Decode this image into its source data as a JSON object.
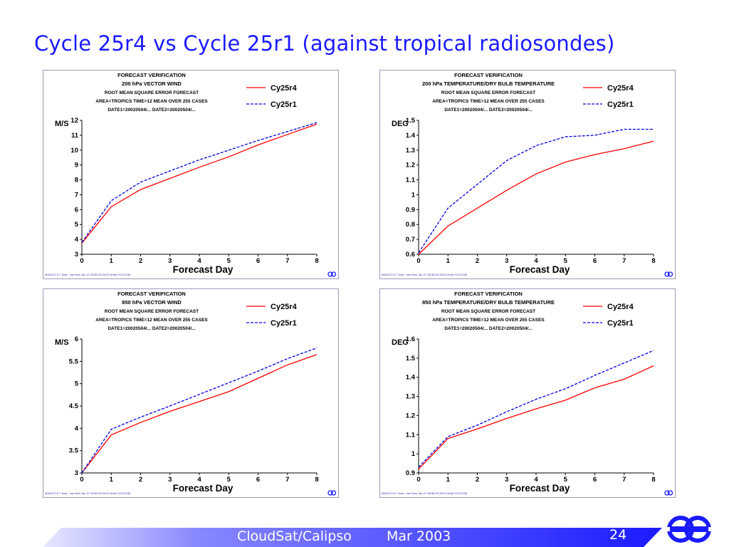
{
  "slide": {
    "title": "Cycle 25r4 vs Cycle 25r1 (against tropical radiosondes)",
    "footer_left": "CloudSat/Calipso",
    "footer_date": "Mar 2003",
    "page_number": "24",
    "bar_color": "#1a1aff",
    "logo_color": "#1a1aff"
  },
  "chart_data": [
    {
      "type": "line",
      "header": [
        "FORECAST VERIFICATION",
        "200 hPa VECTOR WIND",
        "ROOT MEAN SQUARE ERROR          FORECAST",
        "AREA=TROPICS    TIME=12   MEAN OVER 255 CASES",
        "DATE1=20020504/... DATE2=20020504/..."
      ],
      "ylabel": "M/S",
      "xlabel": "Forecast Day",
      "x": [
        0,
        1,
        2,
        3,
        4,
        5,
        6,
        7,
        8
      ],
      "ylim": [
        3,
        12
      ],
      "yticks": [
        "3",
        "4",
        "5",
        "6",
        "7",
        "8",
        "9",
        "10",
        "11",
        "12"
      ],
      "xticks": [
        "0",
        "1",
        "2",
        "3",
        "4",
        "5",
        "6",
        "7",
        "8"
      ],
      "series": [
        {
          "name": "Cy25r4",
          "color": "#ff0000",
          "dash": "solid",
          "values": [
            3.75,
            6.2,
            7.35,
            8.1,
            8.85,
            9.55,
            10.35,
            11.05,
            11.75
          ]
        },
        {
          "name": "Cy25r1",
          "color": "#0000dd",
          "dash": "dashed",
          "values": [
            3.8,
            6.6,
            7.85,
            8.6,
            9.35,
            10.0,
            10.65,
            11.25,
            11.85
          ]
        }
      ],
      "footnote": "MAGICS 6.7 bola - nse Mon Jan 27 08:53:00 2003 Verify SCOCOM",
      "legend": "top-right",
      "grid": false
    },
    {
      "type": "line",
      "header": [
        "FORECAST VERIFICATION",
        "200 hPa TEMPERATURE/DRY BULB TEMPERATURE",
        "ROOT MEAN SQUARE ERROR          FORECAST",
        "AREA=TROPICS    TIME=12   MEAN OVER 255 CASES",
        "DATE1=20020504/... DATE2=20020504/..."
      ],
      "ylabel": "DEG",
      "xlabel": "Forecast Day",
      "x": [
        0,
        1,
        2,
        3,
        4,
        5,
        6,
        7,
        8
      ],
      "ylim": [
        0.6,
        1.5
      ],
      "yticks": [
        "0.6",
        "0.7",
        "0.8",
        "0.9",
        "1",
        "1.1",
        "1.2",
        "1.3",
        "1.4",
        "1.5"
      ],
      "xticks": [
        "0",
        "1",
        "2",
        "3",
        "4",
        "5",
        "6",
        "7",
        "8"
      ],
      "series": [
        {
          "name": "Cy25r4",
          "color": "#ff0000",
          "dash": "solid",
          "values": [
            0.6,
            0.79,
            0.91,
            1.03,
            1.14,
            1.22,
            1.27,
            1.31,
            1.36
          ]
        },
        {
          "name": "Cy25r1",
          "color": "#0000dd",
          "dash": "dashed",
          "values": [
            0.61,
            0.91,
            1.07,
            1.23,
            1.33,
            1.39,
            1.4,
            1.44,
            1.44
          ]
        }
      ],
      "footnote": "MAGICS 6.7 bola - nse Mon Jan 27 08:55:06 2003 Verify SCOCOM",
      "legend": "top-right",
      "grid": false
    },
    {
      "type": "line",
      "header": [
        "FORECAST VERIFICATION",
        "850 hPa VECTOR WIND",
        "ROOT MEAN SQUARE ERROR          FORECAST",
        "AREA=TROPICS    TIME=12   MEAN OVER 255 CASES",
        "DATE1=20020504/... DATE2=20020504/..."
      ],
      "ylabel": "M/S",
      "xlabel": "Forecast Day",
      "x": [
        0,
        1,
        2,
        3,
        4,
        5,
        6,
        7,
        8
      ],
      "ylim": [
        3,
        6
      ],
      "yticks": [
        "3",
        "3.5",
        "4",
        "4.5",
        "5",
        "5.5",
        "6"
      ],
      "xticks": [
        "0",
        "1",
        "2",
        "3",
        "4",
        "5",
        "6",
        "7",
        "8"
      ],
      "series": [
        {
          "name": "Cy25r4",
          "color": "#ff0000",
          "dash": "solid",
          "values": [
            3.0,
            3.85,
            4.13,
            4.38,
            4.6,
            4.82,
            5.12,
            5.42,
            5.65
          ]
        },
        {
          "name": "Cy25r1",
          "color": "#0000dd",
          "dash": "dashed",
          "values": [
            3.0,
            3.98,
            4.25,
            4.5,
            4.76,
            5.02,
            5.28,
            5.56,
            5.8
          ]
        }
      ],
      "footnote": "MAGICS 6.7 bola - nse Mon Jan 27 08:53:00 2003 Verify SCOCOM",
      "legend": "top-right",
      "grid": false
    },
    {
      "type": "line",
      "header": [
        "FORECAST VERIFICATION",
        "850 hPa TEMPERATURE/DRY BULB TEMPERATURE",
        "ROOT MEAN SQUARE ERROR          FORECAST",
        "AREA=TROPICS    TIME=12   MEAN OVER 255 CASES",
        "DATE1=20020504/... DATE2=20020504/..."
      ],
      "ylabel": "DEG",
      "xlabel": "Forecast Day",
      "x": [
        0,
        1,
        2,
        3,
        4,
        5,
        6,
        7,
        8
      ],
      "ylim": [
        0.9,
        1.6
      ],
      "yticks": [
        "0.9",
        "1",
        "1.1",
        "1.2",
        "1.3",
        "1.4",
        "1.5",
        "1.6"
      ],
      "xticks": [
        "0",
        "1",
        "2",
        "3",
        "4",
        "5",
        "6",
        "7",
        "8"
      ],
      "series": [
        {
          "name": "Cy25r4",
          "color": "#ff0000",
          "dash": "solid",
          "values": [
            0.92,
            1.08,
            1.13,
            1.185,
            1.235,
            1.28,
            1.345,
            1.39,
            1.46
          ]
        },
        {
          "name": "Cy25r1",
          "color": "#0000dd",
          "dash": "dashed",
          "values": [
            0.93,
            1.09,
            1.15,
            1.22,
            1.285,
            1.34,
            1.41,
            1.475,
            1.54
          ]
        }
      ],
      "footnote": "MAGICS 6.7 bola - nse Mon Jan 27 08:55:22 2003 Verify SCOCOM",
      "legend": "top-right",
      "grid": false
    }
  ]
}
